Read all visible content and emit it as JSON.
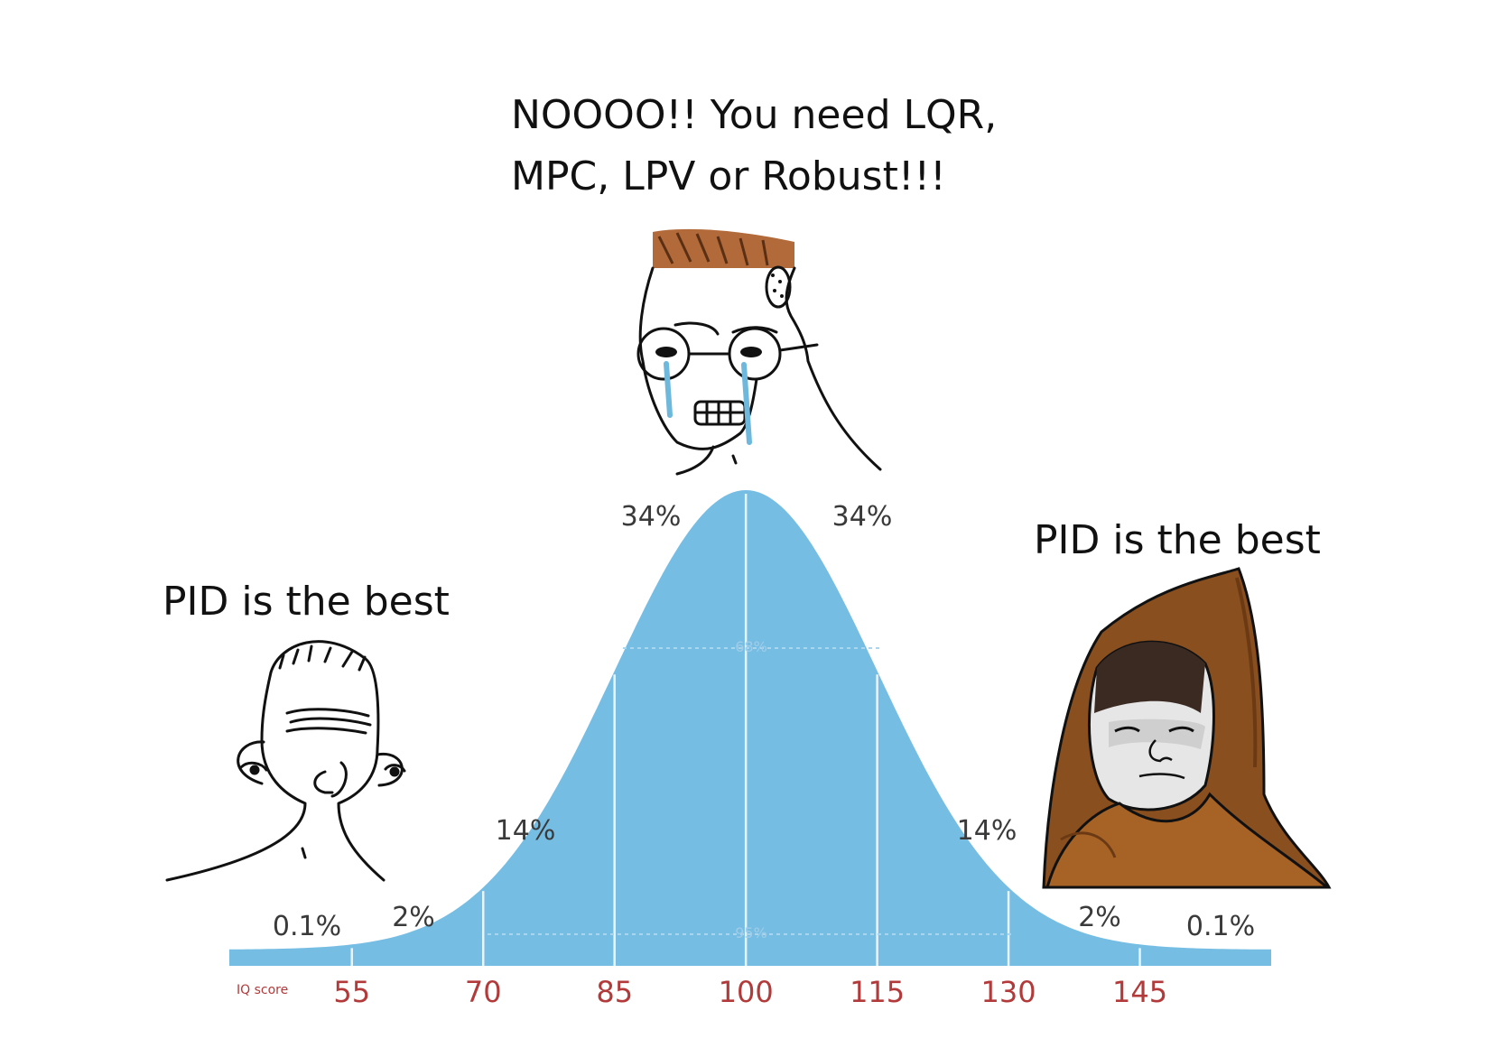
{
  "captions": {
    "middle_line1": "NOOOO!! You need LQR,",
    "middle_line2": "MPC, LPV or Robust!!!",
    "left": "PID is the best",
    "right": "PID is the best"
  },
  "colors": {
    "curve_fill": "#76bde4",
    "divider": "#e8f4fb",
    "tick_label": "#b23a3a",
    "percent_label": "#3a3a3a",
    "hair": "#b26a3a",
    "hood": "#8a4f1f",
    "tears": "#6fb8dd"
  },
  "characters": {
    "left": "wojak-simple-face-icon",
    "middle": "crying-nerd-wojak-icon",
    "right": "hooded-monk-wojak-icon"
  },
  "chart_data": {
    "type": "area",
    "xlabel": "IQ score",
    "x_ticks": [
      "55",
      "70",
      "85",
      "100",
      "115",
      "130",
      "145"
    ],
    "x_tick_values": [
      55,
      70,
      85,
      100,
      115,
      130,
      145
    ],
    "xlim": [
      41,
      160
    ],
    "mean": 100,
    "sd": 15,
    "dividers": [
      55,
      70,
      85,
      100,
      115,
      130,
      145
    ],
    "band_labels": [
      "0.1%",
      "2%",
      "14%",
      "34%",
      "34%",
      "14%",
      "2%",
      "0.1%"
    ],
    "inner_labels": [
      "68%",
      "95%"
    ]
  }
}
